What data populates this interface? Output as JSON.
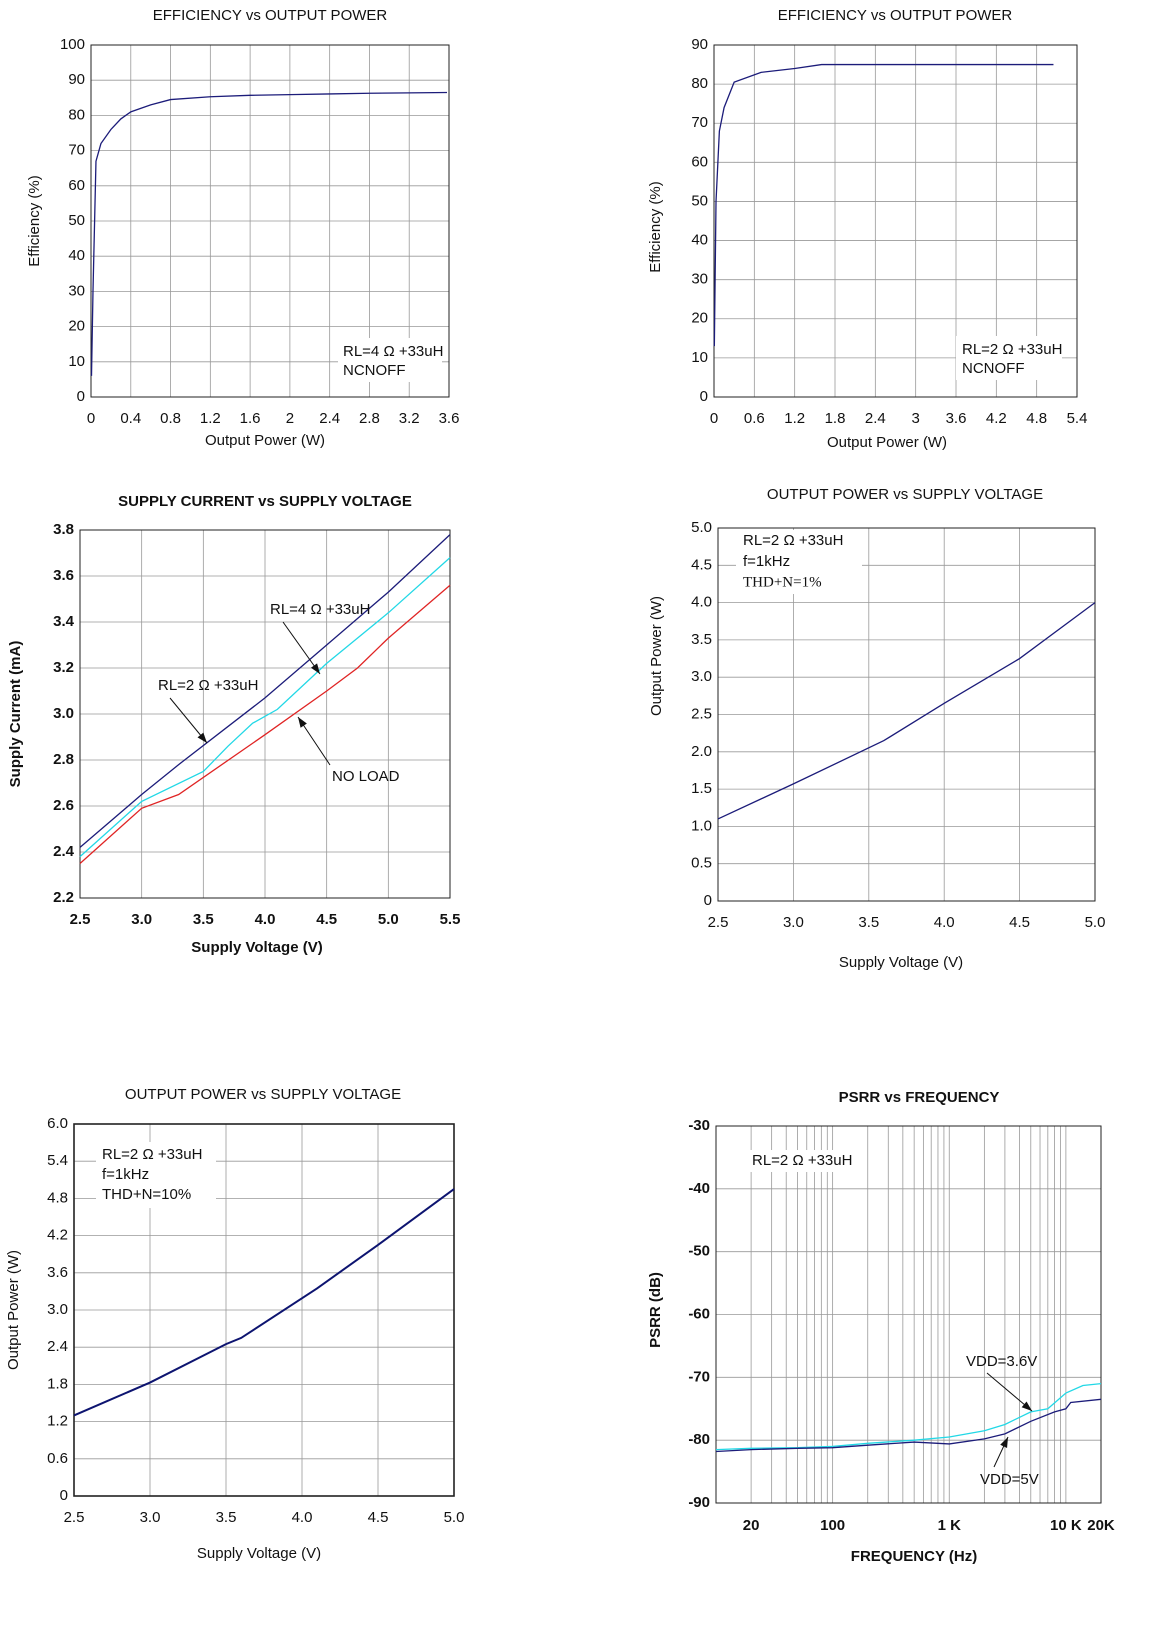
{
  "chart_data": [
    {
      "type": "line",
      "title": "EFFICIENCY vs OUTPUT POWER",
      "xlabel": "Output Power (W)",
      "ylabel": "Efficiency (%)",
      "annotations": [
        "RL=4 Ω +33uH",
        "NCNOFF"
      ],
      "xlim": [
        0,
        3.6
      ],
      "xticks": [
        0,
        0.4,
        0.8,
        1.2,
        1.6,
        2.0,
        2.4,
        2.8,
        3.2,
        3.6
      ],
      "ylim": [
        0,
        100
      ],
      "yticks": [
        0,
        10,
        20,
        30,
        40,
        50,
        60,
        70,
        80,
        90,
        100
      ],
      "grid": true,
      "series": [
        {
          "color": "#1c1c7a",
          "x": [
            0.005,
            0.02,
            0.05,
            0.1,
            0.2,
            0.3,
            0.4,
            0.6,
            0.8,
            1.2,
            1.6,
            2.0,
            2.4,
            2.8,
            3.2,
            3.58
          ],
          "values": [
            6,
            30,
            67,
            72,
            76,
            79,
            81,
            83,
            84.5,
            85.3,
            85.7,
            85.9,
            86.1,
            86.3,
            86.4,
            86.5
          ]
        }
      ]
    },
    {
      "type": "line",
      "title": "EFFICIENCY vs OUTPUT POWER",
      "xlabel": "Output Power (W)",
      "ylabel": "Efficiency (%)",
      "annotations": [
        "RL=2 Ω +33uH",
        "NCNOFF"
      ],
      "xlim": [
        0,
        5.4
      ],
      "xticks": [
        0,
        0.6,
        1.2,
        1.8,
        2.4,
        3.0,
        3.6,
        4.2,
        4.8,
        5.4
      ],
      "ylim": [
        0,
        90
      ],
      "yticks": [
        0,
        10,
        20,
        30,
        40,
        50,
        60,
        70,
        80,
        90
      ],
      "grid": true,
      "series": [
        {
          "color": "#1c1c7a",
          "x": [
            0.005,
            0.03,
            0.08,
            0.15,
            0.3,
            0.7,
            1.2,
            1.6,
            2.0,
            3.0,
            4.0,
            5.05
          ],
          "values": [
            13,
            50,
            68,
            74,
            80.5,
            83,
            84,
            85,
            85,
            85,
            85,
            85
          ]
        }
      ]
    },
    {
      "type": "line",
      "title": "SUPPLY CURRENT vs SUPPLY VOLTAGE",
      "xlabel": "Supply Voltage (V)",
      "ylabel": "Supply Current (mA)",
      "xlim": [
        2.5,
        5.5
      ],
      "xticks": [
        2.5,
        {
          "value": 3,
          "label": "3.0"
        },
        3.5,
        {
          "value": 4,
          "label": "4.0"
        },
        4.5,
        {
          "value": 5,
          "label": "5.0"
        },
        5.5
      ],
      "ylim": [
        2.2,
        3.8
      ],
      "yticks": [
        2.2,
        2.4,
        2.6,
        2.8,
        {
          "value": 3,
          "label": "3.0"
        },
        3.2,
        3.4,
        3.6,
        3.8
      ],
      "grid": true,
      "series": [
        {
          "name": "RL=2 Ω +33uH",
          "color": "#1c1c7a",
          "x": [
            2.5,
            3.0,
            3.3,
            4.0,
            4.5,
            5.0,
            5.5
          ],
          "values": [
            2.42,
            2.65,
            2.78,
            3.07,
            3.3,
            3.53,
            3.78
          ]
        },
        {
          "name": "RL=4 Ω +33uH",
          "color": "#22d8e6",
          "x": [
            2.5,
            3.0,
            3.5,
            3.7,
            3.9,
            4.1,
            4.5,
            5.0,
            5.5
          ],
          "values": [
            2.38,
            2.62,
            2.75,
            2.86,
            2.96,
            3.02,
            3.22,
            3.44,
            3.68
          ]
        },
        {
          "name": "NO LOAD",
          "color": "#e02424",
          "x": [
            2.5,
            3.0,
            3.3,
            4.0,
            4.5,
            4.75,
            5.0,
            5.5
          ],
          "values": [
            2.35,
            2.59,
            2.65,
            2.91,
            3.1,
            3.2,
            3.33,
            3.56
          ]
        }
      ]
    },
    {
      "type": "line",
      "title": "OUTPUT POWER vs SUPPLY VOLTAGE",
      "xlabel": "Supply Voltage (V)",
      "ylabel": "Output Power (W)",
      "annotations": [
        "RL=2 Ω +33uH",
        "f=1kHz",
        "THD+N=1%"
      ],
      "xlim": [
        2.5,
        5.0
      ],
      "xticks": [
        2.5,
        {
          "value": 3,
          "label": "3.0"
        },
        3.5,
        {
          "value": 4,
          "label": "4.0"
        },
        4.5,
        {
          "value": 5,
          "label": "5.0"
        }
      ],
      "ylim": [
        0,
        5.0
      ],
      "yticks": [
        0,
        0.5,
        {
          "value": 1,
          "label": "1.0"
        },
        1.5,
        {
          "value": 2,
          "label": "2.0"
        },
        2.5,
        {
          "value": 3,
          "label": "3.0"
        },
        3.5,
        {
          "value": 4,
          "label": "4.0"
        },
        4.5,
        {
          "value": 5,
          "label": "5.0"
        }
      ],
      "grid": true,
      "series": [
        {
          "color": "#1c1c7a",
          "x": [
            2.5,
            3.0,
            3.6,
            4.0,
            4.5,
            5.0
          ],
          "values": [
            1.1,
            1.57,
            2.15,
            2.65,
            3.25,
            4.0
          ]
        }
      ]
    },
    {
      "type": "line",
      "title": "OUTPUT POWER vs SUPPLY VOLTAGE",
      "xlabel": "Supply Voltage (V)",
      "ylabel": "Output Power (W)",
      "annotations": [
        "RL=2 Ω +33uH",
        "f=1kHz",
        "THD+N=10%"
      ],
      "xlim": [
        2.5,
        5.0
      ],
      "xticks": [
        2.5,
        {
          "value": 3,
          "label": "3.0"
        },
        3.5,
        {
          "value": 4,
          "label": "4.0"
        },
        4.5,
        {
          "value": 5,
          "label": "5.0"
        }
      ],
      "ylim": [
        0,
        6.0
      ],
      "yticks": [
        0,
        0.6,
        1.2,
        1.8,
        2.4,
        {
          "value": 3,
          "label": "3.0"
        },
        3.6,
        4.2,
        4.8,
        5.4,
        {
          "value": 6,
          "label": "6.0"
        }
      ],
      "grid": true,
      "series": [
        {
          "color": "#0d1470",
          "x": [
            2.5,
            3.0,
            3.5,
            3.6,
            4.1,
            4.5,
            5.0
          ],
          "values": [
            1.3,
            1.83,
            2.45,
            2.55,
            3.35,
            4.05,
            4.95
          ]
        }
      ]
    },
    {
      "type": "line",
      "title": "PSRR vs FREQUENCY",
      "xlabel": "FREQUENCY (Hz)",
      "ylabel": "PSRR (dB)",
      "annotations": [
        "RL=2 Ω +33uH"
      ],
      "xscale": "log",
      "xlim": [
        10,
        20000
      ],
      "xticks": [
        20,
        100,
        {
          "value": 1000,
          "label": "1     K"
        },
        {
          "value": 10000,
          "label": "10 K"
        },
        {
          "value": 20000,
          "label": "20K"
        }
      ],
      "xgrid": [
        20,
        30,
        40,
        50,
        60,
        70,
        80,
        90,
        100,
        200,
        300,
        400,
        500,
        600,
        700,
        800,
        900,
        1000,
        2000,
        3000,
        4000,
        5000,
        6000,
        7000,
        8000,
        9000,
        10000
      ],
      "ylim": [
        -90,
        -30
      ],
      "yticks": [
        -90,
        -80,
        -70,
        -60,
        -50,
        -40,
        -30
      ],
      "grid": true,
      "series": [
        {
          "name": "VDD=3.6V",
          "color": "#22d8e6",
          "x": [
            10,
            20,
            50,
            100,
            200,
            500,
            1000,
            2000,
            3000,
            5000,
            7000,
            10000,
            14000,
            20000
          ],
          "values": [
            -81.5,
            -81.3,
            -81.2,
            -81,
            -80.5,
            -80,
            -79.5,
            -78.5,
            -77.5,
            -75.5,
            -75,
            -72.5,
            -71.3,
            -71
          ]
        },
        {
          "name": "VDD=5V",
          "color": "#1c1c7a",
          "x": [
            10,
            20,
            50,
            100,
            200,
            500,
            1000,
            2000,
            3000,
            5000,
            8000,
            10000,
            11000,
            20000
          ],
          "values": [
            -81.8,
            -81.5,
            -81.3,
            -81.2,
            -80.8,
            -80.3,
            -80.6,
            -79.8,
            -79,
            -77,
            -75.5,
            -75,
            -74,
            -73.5
          ]
        }
      ]
    }
  ]
}
